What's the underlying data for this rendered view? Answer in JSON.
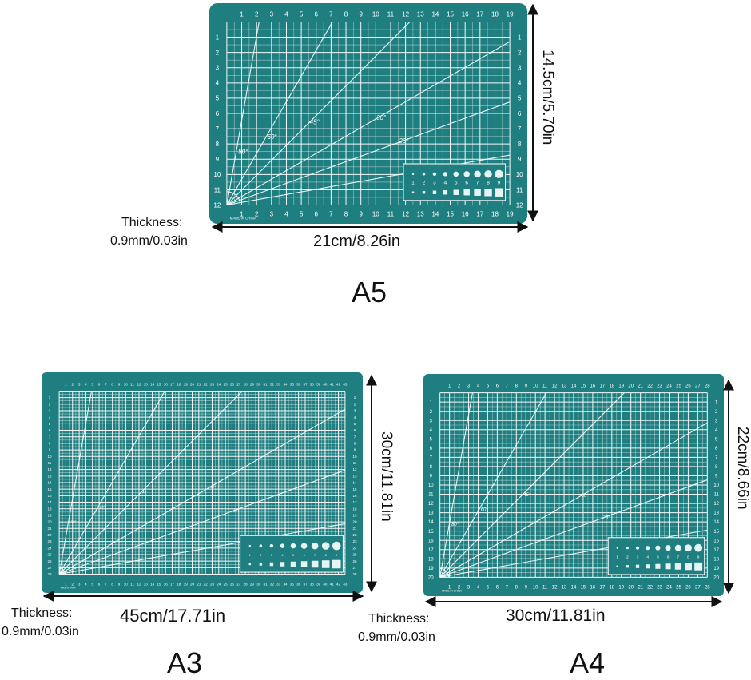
{
  "colors": {
    "mat": "#1f7f80",
    "lines": "#ffffff",
    "annotation": "#111111"
  },
  "mats": [
    {
      "id": "a5",
      "size_label": "A5",
      "width_label": "21cm/8.26in",
      "height_label": "14.5cm/5.70in",
      "thickness_label": "Thickness:",
      "thickness_value": "0.9mm/0.03in",
      "made_in": "MADE IN CHINA",
      "grid_cols": 19,
      "grid_rows": 12,
      "angle_labels": [
        "80",
        "60",
        "45",
        "30",
        "20",
        "10"
      ],
      "hole_template_numbers": [
        "1",
        "2",
        "3",
        "4",
        "5",
        "6",
        "7",
        "8",
        "9"
      ]
    },
    {
      "id": "a3",
      "size_label": "A3",
      "width_label": "45cm/17.71in",
      "height_label": "30cm/11.81in",
      "thickness_label": "Thickness:",
      "thickness_value": "0.9mm/0.03in",
      "made_in": "MADE IN CHINA",
      "grid_cols": 43,
      "grid_rows": 28,
      "angle_labels": [
        "80",
        "60",
        "45",
        "30",
        "20",
        "10"
      ],
      "hole_template_numbers": [
        "1",
        "2",
        "3",
        "4",
        "5",
        "6",
        "7",
        "8",
        "9"
      ]
    },
    {
      "id": "a4",
      "size_label": "A4",
      "width_label": "30cm/11.81in",
      "height_label": "22cm/8.66in",
      "thickness_label": "Thickness:",
      "thickness_value": "0.9mm/0.03in",
      "made_in": "MADE IN CHINA",
      "grid_cols": 28,
      "grid_rows": 20,
      "angle_labels": [
        "80",
        "60",
        "45",
        "30",
        "20",
        "10"
      ],
      "hole_template_numbers": [
        "1",
        "2",
        "3",
        "4",
        "5",
        "6",
        "7",
        "8",
        "9"
      ]
    }
  ]
}
